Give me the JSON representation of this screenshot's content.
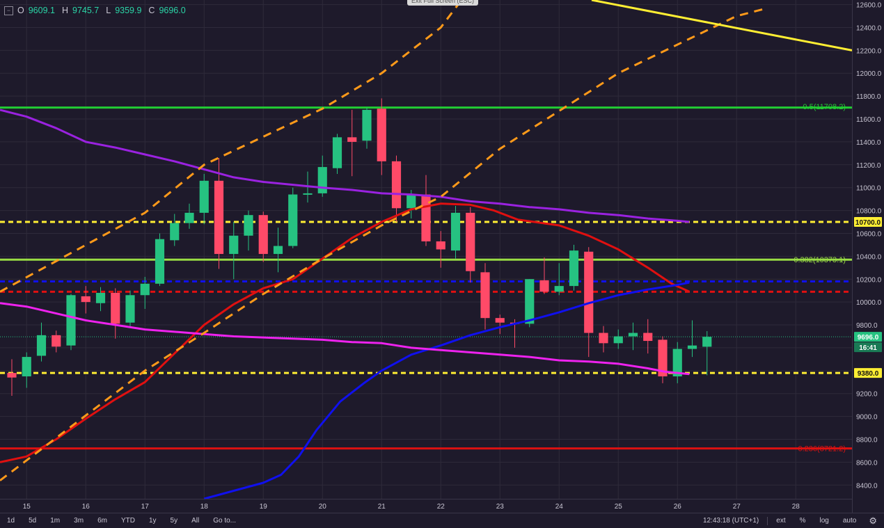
{
  "ohlc": {
    "o_label": "O",
    "o": "9609.1",
    "h_label": "H",
    "h": "9745.7",
    "l_label": "L",
    "l": "9359.9",
    "c_label": "C",
    "c": "9696.0"
  },
  "exit_fullscreen": "Exit Full Screen (ESC)",
  "toolbar": {
    "ranges": [
      "1d",
      "5d",
      "1m",
      "3m",
      "6m",
      "YTD",
      "1y",
      "5y",
      "All"
    ],
    "goto": "Go to...",
    "time": "12:43:18 (UTC+1)",
    "ext": "ext",
    "percent": "%",
    "log": "log",
    "auto": "auto"
  },
  "colors": {
    "background": "#1e1a2b",
    "grid": "#2e2a3b",
    "up": "#26c281",
    "down": "#ff4a68",
    "ema_red": "#e01010",
    "ema_blue": "#1010ee",
    "ema_purple": "#9a22e0",
    "ema_magenta": "#ee22ee",
    "channel": "#ff9a1a",
    "trend_yellow": "#ffee33"
  },
  "chart_data": {
    "type": "candlestick",
    "x_ticks": [
      "15",
      "16",
      "17",
      "18",
      "19",
      "20",
      "21",
      "22",
      "23",
      "24",
      "25",
      "26",
      "27",
      "28"
    ],
    "y_ticks": [
      "8400.0",
      "8600.0",
      "8800.0",
      "9000.0",
      "9200.0",
      "9400.0",
      "9600.0",
      "9800.0",
      "10000.0",
      "10200.0",
      "10400.0",
      "10600.0",
      "10800.0",
      "11000.0",
      "11200.0",
      "11400.0",
      "11600.0",
      "11800.0",
      "12000.0",
      "12200.0",
      "12400.0",
      "12600.0"
    ],
    "ylim": [
      8280,
      12640
    ],
    "xlim": [
      14.55,
      28.95
    ],
    "last_price": "9696.0",
    "countdown": "16:41",
    "price_labels": [
      "10700.0",
      "9380.0"
    ],
    "candles": [
      [
        14.75,
        9380,
        9500,
        9180,
        9340
      ],
      [
        15.0,
        9350,
        9560,
        9250,
        9520
      ],
      [
        15.25,
        9530,
        9820,
        9480,
        9710
      ],
      [
        15.5,
        9710,
        9750,
        9560,
        9610
      ],
      [
        15.75,
        9620,
        10070,
        9580,
        10060
      ],
      [
        16.0,
        10050,
        10140,
        9900,
        10000
      ],
      [
        16.25,
        9990,
        10130,
        9920,
        10080
      ],
      [
        16.5,
        10080,
        10120,
        9680,
        9810
      ],
      [
        16.75,
        9820,
        10100,
        9780,
        10060
      ],
      [
        17.0,
        10060,
        10220,
        9940,
        10160
      ],
      [
        17.25,
        10160,
        10600,
        10140,
        10550
      ],
      [
        17.5,
        10540,
        10770,
        10490,
        10690
      ],
      [
        17.75,
        10690,
        10860,
        10640,
        10780
      ],
      [
        18.0,
        10780,
        11120,
        10680,
        11060
      ],
      [
        18.25,
        11060,
        11260,
        10290,
        10420
      ],
      [
        18.5,
        10420,
        10700,
        10200,
        10580
      ],
      [
        18.75,
        10580,
        10800,
        10450,
        10760
      ],
      [
        19.0,
        10760,
        10790,
        10350,
        10420
      ],
      [
        19.25,
        10420,
        10650,
        10260,
        10490
      ],
      [
        19.5,
        10490,
        11000,
        10470,
        10940
      ],
      [
        19.75,
        10940,
        11140,
        10870,
        10950
      ],
      [
        20.0,
        10950,
        11280,
        10920,
        11180
      ],
      [
        20.25,
        11170,
        11470,
        11120,
        11440
      ],
      [
        20.5,
        11440,
        11680,
        11100,
        11400
      ],
      [
        20.75,
        11410,
        11700,
        11340,
        11680
      ],
      [
        21.0,
        11690,
        11780,
        11110,
        11230
      ],
      [
        21.25,
        11230,
        11280,
        10700,
        10820
      ],
      [
        21.5,
        10820,
        10980,
        10730,
        10940
      ],
      [
        21.75,
        10940,
        11110,
        10490,
        10530
      ],
      [
        22.0,
        10530,
        10620,
        10300,
        10460
      ],
      [
        22.25,
        10450,
        10840,
        10380,
        10780
      ],
      [
        22.5,
        10780,
        10830,
        10170,
        10270
      ],
      [
        22.75,
        10260,
        10340,
        9760,
        9860
      ],
      [
        23.0,
        9860,
        9890,
        9720,
        9820
      ],
      [
        23.25,
        9820,
        9850,
        9600,
        9810
      ],
      [
        23.5,
        9810,
        10200,
        9780,
        10200
      ],
      [
        23.75,
        10190,
        10390,
        10070,
        10090
      ],
      [
        24.0,
        10090,
        10340,
        10060,
        10140
      ],
      [
        24.25,
        10140,
        10500,
        10100,
        10450
      ],
      [
        24.5,
        10440,
        10480,
        9520,
        9730
      ],
      [
        24.75,
        9730,
        9790,
        9560,
        9640
      ],
      [
        25.0,
        9640,
        9760,
        9590,
        9700
      ],
      [
        25.25,
        9700,
        9820,
        9580,
        9730
      ],
      [
        25.5,
        9730,
        9850,
        9550,
        9660
      ],
      [
        25.75,
        9670,
        9700,
        9290,
        9350
      ],
      [
        26.0,
        9350,
        9650,
        9290,
        9590
      ],
      [
        26.25,
        9590,
        9840,
        9520,
        9620
      ],
      [
        26.5,
        9609.1,
        9745.7,
        9359.9,
        9696.0
      ]
    ],
    "lines": [
      {
        "type": "ema",
        "color": "red",
        "points": [
          [
            14.55,
            8600
          ],
          [
            15.0,
            8650
          ],
          [
            15.5,
            8800
          ],
          [
            16.0,
            8980
          ],
          [
            16.5,
            9150
          ],
          [
            17.0,
            9300
          ],
          [
            17.5,
            9550
          ],
          [
            18.0,
            9800
          ],
          [
            18.5,
            9980
          ],
          [
            19.0,
            10120
          ],
          [
            19.5,
            10200
          ],
          [
            20.0,
            10380
          ],
          [
            20.5,
            10560
          ],
          [
            21.0,
            10700
          ],
          [
            21.5,
            10810
          ],
          [
            22.0,
            10860
          ],
          [
            22.5,
            10850
          ],
          [
            22.9,
            10800
          ],
          [
            23.3,
            10720
          ],
          [
            24.0,
            10670
          ],
          [
            24.5,
            10580
          ],
          [
            25.0,
            10460
          ],
          [
            25.5,
            10300
          ],
          [
            25.9,
            10160
          ],
          [
            26.2,
            10090
          ]
        ]
      },
      {
        "type": "ema",
        "color": "blue",
        "points": [
          [
            18.0,
            8280
          ],
          [
            19.0,
            8420
          ],
          [
            19.3,
            8490
          ],
          [
            19.6,
            8650
          ],
          [
            19.9,
            8880
          ],
          [
            20.3,
            9130
          ],
          [
            20.7,
            9290
          ],
          [
            21.0,
            9400
          ],
          [
            21.5,
            9540
          ],
          [
            22.0,
            9620
          ],
          [
            22.5,
            9710
          ],
          [
            23.0,
            9780
          ],
          [
            23.5,
            9840
          ],
          [
            24.0,
            9910
          ],
          [
            24.5,
            9990
          ],
          [
            25.0,
            10060
          ],
          [
            25.5,
            10110
          ],
          [
            26.0,
            10150
          ],
          [
            26.2,
            10170
          ]
        ]
      },
      {
        "type": "ema",
        "color": "purple",
        "points": [
          [
            14.55,
            11680
          ],
          [
            15.0,
            11620
          ],
          [
            15.5,
            11520
          ],
          [
            16.0,
            11400
          ],
          [
            16.5,
            11350
          ],
          [
            17.0,
            11290
          ],
          [
            17.5,
            11230
          ],
          [
            18.0,
            11160
          ],
          [
            18.5,
            11090
          ],
          [
            19.0,
            11050
          ],
          [
            20.0,
            11000
          ],
          [
            20.5,
            10980
          ],
          [
            21.0,
            10950
          ],
          [
            21.5,
            10940
          ],
          [
            22.0,
            10920
          ],
          [
            22.5,
            10880
          ],
          [
            23.0,
            10860
          ],
          [
            23.5,
            10830
          ],
          [
            24.0,
            10810
          ],
          [
            24.5,
            10780
          ],
          [
            25.0,
            10760
          ],
          [
            25.5,
            10730
          ],
          [
            26.0,
            10710
          ],
          [
            26.2,
            10700
          ]
        ]
      },
      {
        "type": "ema",
        "color": "magenta",
        "points": [
          [
            14.55,
            9990
          ],
          [
            15.0,
            9960
          ],
          [
            15.5,
            9900
          ],
          [
            16.0,
            9840
          ],
          [
            16.5,
            9800
          ],
          [
            17.0,
            9760
          ],
          [
            18.0,
            9720
          ],
          [
            18.5,
            9700
          ],
          [
            19.0,
            9690
          ],
          [
            20.0,
            9670
          ],
          [
            20.5,
            9650
          ],
          [
            21.0,
            9640
          ],
          [
            21.5,
            9600
          ],
          [
            22.0,
            9580
          ],
          [
            22.5,
            9560
          ],
          [
            23.0,
            9540
          ],
          [
            23.5,
            9520
          ],
          [
            24.0,
            9490
          ],
          [
            24.5,
            9480
          ],
          [
            25.0,
            9460
          ],
          [
            25.5,
            9420
          ],
          [
            25.8,
            9390
          ],
          [
            26.0,
            9380
          ],
          [
            26.2,
            9370
          ]
        ]
      },
      {
        "type": "hline",
        "color": "green",
        "value": 11700
      },
      {
        "type": "hline",
        "color": "lime",
        "value": 10370
      },
      {
        "type": "hline",
        "color": "darkred",
        "value": 8720
      },
      {
        "type": "dashed",
        "color": "yellow",
        "value": 10700
      },
      {
        "type": "dashed",
        "color": "yellow",
        "value": 9380
      },
      {
        "type": "dashed",
        "color": "blue",
        "value": 10180
      },
      {
        "type": "dashed",
        "color": "red",
        "value": 10090
      },
      {
        "type": "channel",
        "color": "orange",
        "points": [
          [
            14.55,
            10090
          ],
          [
            17.0,
            10780
          ],
          [
            18.0,
            11200
          ],
          [
            20.0,
            11690
          ],
          [
            21.0,
            12000
          ],
          [
            22.0,
            12400
          ],
          [
            22.35,
            12640
          ]
        ]
      },
      {
        "type": "channel",
        "color": "orange",
        "points": [
          [
            14.55,
            8440
          ],
          [
            17.0,
            9400
          ],
          [
            18.0,
            9730
          ],
          [
            19.0,
            10070
          ],
          [
            20.0,
            10380
          ],
          [
            21.0,
            10670
          ],
          [
            22.0,
            10920
          ],
          [
            23.0,
            11340
          ],
          [
            25.0,
            12000
          ],
          [
            27.0,
            12500
          ],
          [
            27.45,
            12560
          ]
        ]
      },
      {
        "type": "trend",
        "color": "yellow",
        "points": [
          [
            24.55,
            12640
          ],
          [
            28.95,
            12200
          ]
        ]
      }
    ],
    "fib_labels": [
      "0.5(11708.2)",
      "0.382(10373.1)",
      "0.236(8721.2)"
    ]
  }
}
